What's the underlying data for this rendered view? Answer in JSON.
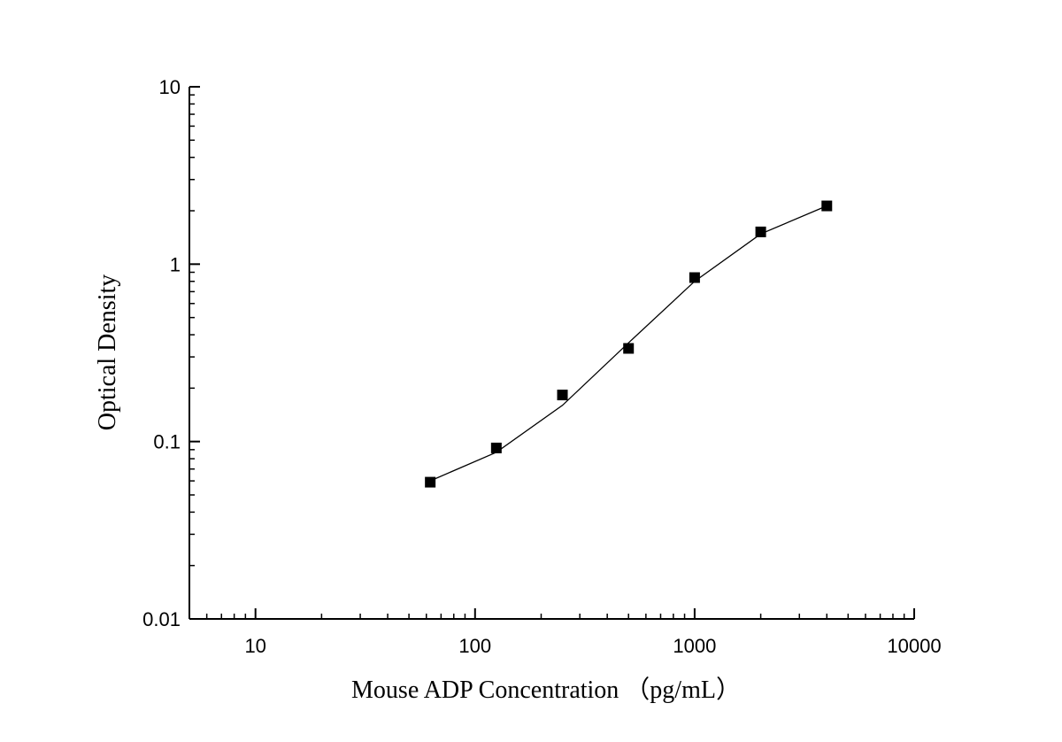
{
  "chart_data": {
    "type": "scatter",
    "title": "",
    "xlabel": "Mouse ADP Concentration （pg/mL）",
    "ylabel": "Optical Density",
    "x_scale": "log",
    "y_scale": "log",
    "xlim": [
      5,
      10000
    ],
    "ylim": [
      0.01,
      10
    ],
    "x_ticks": [
      {
        "value": 10,
        "label": "10"
      },
      {
        "value": 100,
        "label": "100"
      },
      {
        "value": 1000,
        "label": "1000"
      },
      {
        "value": 10000,
        "label": "10000"
      }
    ],
    "y_ticks": [
      {
        "value": 0.01,
        "label": "0.01"
      },
      {
        "value": 0.1,
        "label": "0.1"
      },
      {
        "value": 1,
        "label": "1"
      },
      {
        "value": 10,
        "label": "10"
      }
    ],
    "grid": false,
    "legend": "none",
    "marker": "square",
    "color": "#000000",
    "series": [
      {
        "x": [
          62.5,
          125,
          250,
          500,
          1000,
          2000,
          4000
        ],
        "y": [
          0.059,
          0.092,
          0.183,
          0.335,
          0.84,
          1.52,
          2.13
        ]
      }
    ],
    "fit_curve": {
      "x": [
        62.5,
        125,
        250,
        500,
        1000,
        2000,
        4000
      ],
      "y": [
        0.06,
        0.087,
        0.16,
        0.36,
        0.8,
        1.48,
        2.13
      ]
    }
  }
}
